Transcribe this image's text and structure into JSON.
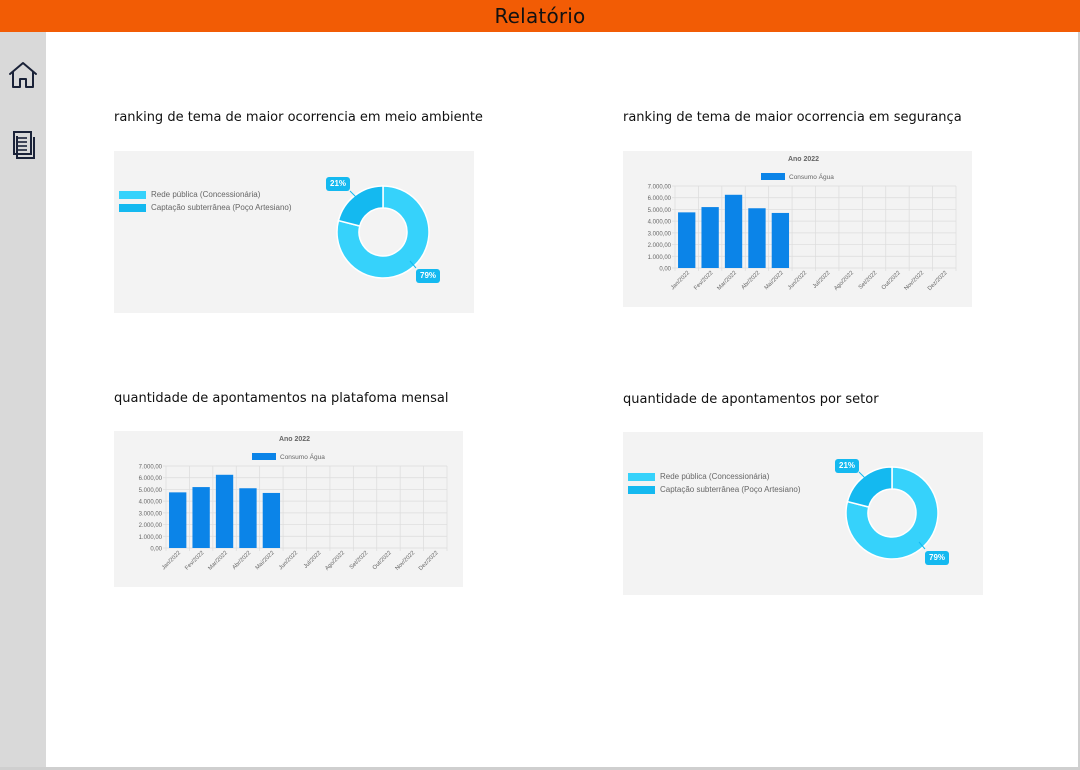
{
  "header": {
    "title": "Relatório"
  },
  "sidebar": {
    "home_icon": "home-icon",
    "report_icon": "document-icon"
  },
  "colors": {
    "accent": "#f25c05",
    "sidebar": "#d9d9d9",
    "bar": "#0b84e8",
    "donut_main": "#36d2fb",
    "donut_minor": "#14b9f0"
  },
  "sections": {
    "meio_ambiente": {
      "title": "ranking de tema de maior ocorrencia em meio ambiente"
    },
    "seguranca": {
      "title": "ranking de tema de maior ocorrencia em segurança"
    },
    "plataforma": {
      "title": "quantidade de apontamentos na platafoma mensal"
    },
    "setor": {
      "title": "quantidade de apontamentos por setor"
    }
  },
  "chart_data": [
    {
      "id": "meio_ambiente",
      "type": "pie",
      "variant": "doughnut",
      "labels": [
        "Rede pública (Concessionária)",
        "Captação subterrânea (Poço Artesiano)"
      ],
      "values": [
        79,
        21
      ],
      "value_labels": [
        "79%",
        "21%"
      ],
      "colors": [
        "#36d2fb",
        "#14b9f0"
      ],
      "legend": "left"
    },
    {
      "id": "seguranca",
      "type": "bar",
      "title": "Ano 2022",
      "categories": [
        "Jan/2022",
        "Fev/2022",
        "Mar/2022",
        "Abr/2022",
        "Mai/2022",
        "Jun/2022",
        "Jul/2022",
        "Ago/2022",
        "Set/2022",
        "Out/2022",
        "Nov/2022",
        "Dez/2022"
      ],
      "series": [
        {
          "name": "Consumo Água",
          "values": [
            4750,
            5200,
            6250,
            5100,
            4700,
            null,
            null,
            null,
            null,
            null,
            null,
            null
          ]
        }
      ],
      "yticks": [
        "0,00",
        "1.000,00",
        "2.000,00",
        "3.000,00",
        "4.000,00",
        "5.000,00",
        "6.000,00",
        "7.000,00"
      ],
      "ylim": [
        0,
        7000
      ],
      "grid": true,
      "legend": "top"
    },
    {
      "id": "plataforma",
      "type": "bar",
      "title": "Ano 2022",
      "categories": [
        "Jan/2022",
        "Fev/2022",
        "Mar/2022",
        "Abr/2022",
        "Mai/2022",
        "Jun/2022",
        "Jul/2022",
        "Ago/2022",
        "Set/2022",
        "Out/2022",
        "Nov/2022",
        "Dez/2022"
      ],
      "series": [
        {
          "name": "Consumo Água",
          "values": [
            4750,
            5200,
            6250,
            5100,
            4700,
            null,
            null,
            null,
            null,
            null,
            null,
            null
          ]
        }
      ],
      "yticks": [
        "0,00",
        "1.000,00",
        "2.000,00",
        "3.000,00",
        "4.000,00",
        "5.000,00",
        "6.000,00",
        "7.000,00"
      ],
      "ylim": [
        0,
        7000
      ],
      "grid": true,
      "legend": "top"
    },
    {
      "id": "setor",
      "type": "pie",
      "variant": "doughnut",
      "labels": [
        "Rede pública (Concessionária)",
        "Captação subterrânea (Poço Artesiano)"
      ],
      "values": [
        79,
        21
      ],
      "value_labels": [
        "79%",
        "21%"
      ],
      "colors": [
        "#36d2fb",
        "#14b9f0"
      ],
      "legend": "left"
    }
  ]
}
